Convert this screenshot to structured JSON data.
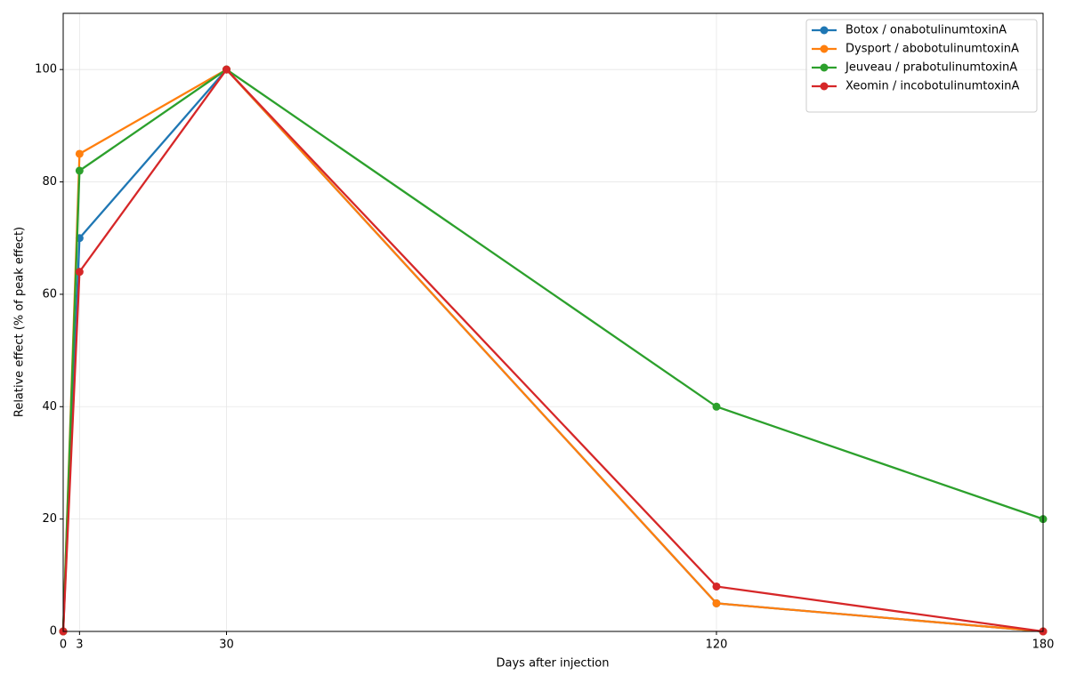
{
  "chart_data": {
    "type": "line",
    "xlabel": "Days after injection",
    "ylabel": "Relative effect (% of peak effect)",
    "x": [
      0,
      3,
      30,
      120,
      180
    ],
    "series": [
      {
        "name": "Botox / onabotulinumtoxinA",
        "color": "#1f77b4",
        "values": [
          0,
          70,
          100,
          5,
          0
        ]
      },
      {
        "name": "Dysport / abobotulinumtoxinA",
        "color": "#ff7f0e",
        "values": [
          0,
          85,
          100,
          5,
          0
        ]
      },
      {
        "name": "Jeuveau / prabotulinumtoxinA",
        "color": "#2ca02c",
        "values": [
          0,
          82,
          100,
          40,
          20
        ]
      },
      {
        "name": "Xeomin / incobotulinumtoxinA",
        "color": "#d62728",
        "values": [
          0,
          64,
          100,
          8,
          0
        ]
      }
    ],
    "xlim": [
      0,
      180
    ],
    "xticks": [
      0,
      3,
      30,
      120,
      180
    ],
    "ylim": [
      0,
      110
    ],
    "yticks": [
      0,
      20,
      40,
      60,
      80,
      100
    ],
    "grid": true,
    "legend": "upper right"
  }
}
